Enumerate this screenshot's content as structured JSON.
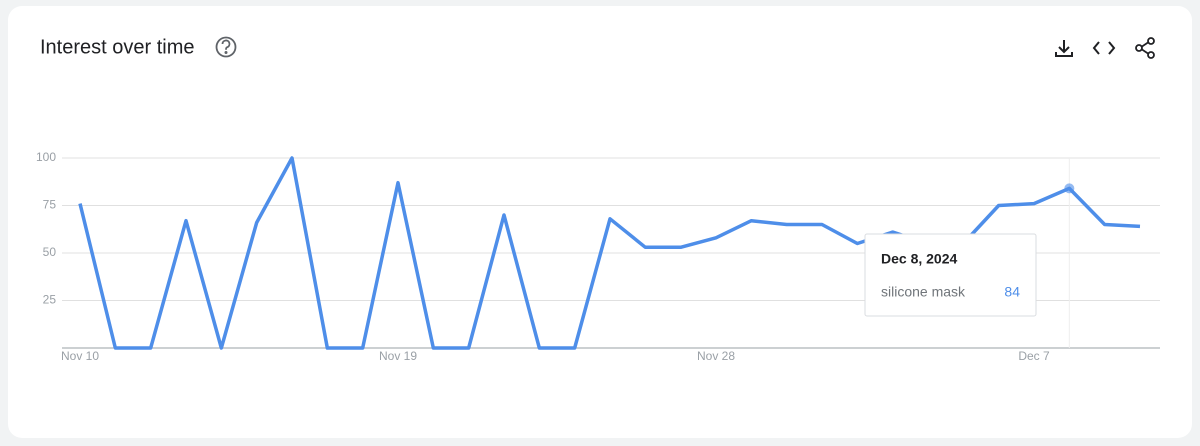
{
  "chart_data": {
    "type": "line",
    "title": "Interest over time",
    "categories": [
      "Nov 10",
      null,
      null,
      null,
      null,
      null,
      null,
      null,
      null,
      "Nov 19",
      null,
      null,
      null,
      null,
      null,
      null,
      null,
      null,
      "Nov 28",
      null,
      null,
      null,
      null,
      null,
      null,
      null,
      null,
      "Dec 7",
      null,
      null,
      null
    ],
    "series": [
      {
        "name": "silicone mask",
        "color": "#4e8ee9",
        "values": [
          76,
          0,
          0,
          67,
          0,
          66,
          100,
          0,
          0,
          87,
          0,
          0,
          70,
          0,
          0,
          68,
          53,
          53,
          58,
          67,
          65,
          65,
          55,
          61,
          55,
          55,
          75,
          76,
          84,
          65,
          64
        ]
      }
    ],
    "ylim": [
      0,
      100
    ],
    "yticks": [
      25,
      50,
      75,
      100
    ],
    "grid": true,
    "tooltip": {
      "date": "Dec 8, 2024",
      "index": 28
    }
  }
}
